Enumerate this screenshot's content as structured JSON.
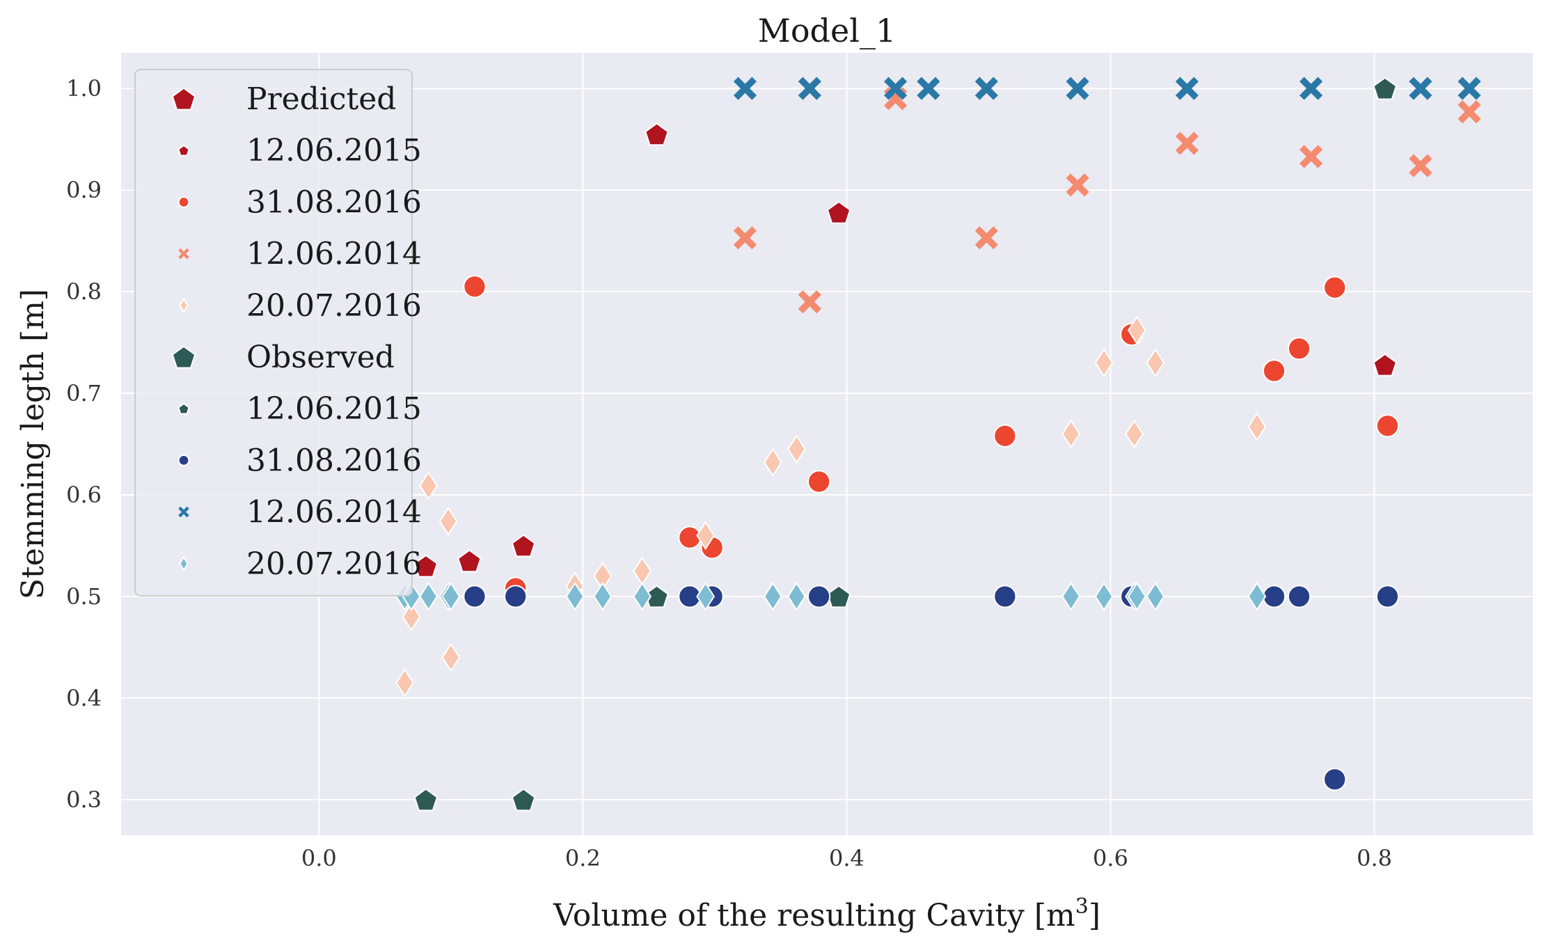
{
  "colors": {
    "plot_bg": "#eaeaf2",
    "pred_2015": "#b0141f",
    "pred_2016_08": "#ec4630",
    "pred_2014": "#f48a6e",
    "pred_2016_07": "#f9c7af",
    "obs_2015": "#2e5a56",
    "obs_2016_08": "#263f86",
    "obs_2014": "#2a78a6",
    "obs_2016_07": "#7dbcd3"
  },
  "chart_data": {
    "type": "scatter",
    "title": "Model_1",
    "xlabel": "Volume of the resulting Cavity [m",
    "xlabel_sup": "3",
    "xlabel_end": "]",
    "ylabel": "Stemming legth [m]",
    "xlim": [
      -0.15,
      0.92
    ],
    "ylim": [
      0.265,
      1.035
    ],
    "x_ticks": [
      "0.0",
      "0.2",
      "0.4",
      "0.6",
      "0.8"
    ],
    "y_ticks": [
      "0.3",
      "0.4",
      "0.5",
      "0.6",
      "0.7",
      "0.8",
      "0.9",
      "1.0"
    ],
    "legend": [
      {
        "label": "Predicted",
        "kind": "header",
        "marker": "pentagon",
        "color_key": "pred_2015"
      },
      {
        "label": "12.06.2015",
        "kind": "series",
        "marker": "pentagon",
        "color_key": "pred_2015"
      },
      {
        "label": "31.08.2016",
        "kind": "series",
        "marker": "circle",
        "color_key": "pred_2016_08"
      },
      {
        "label": "12.06.2014",
        "kind": "series",
        "marker": "x",
        "color_key": "pred_2014"
      },
      {
        "label": "20.07.2016",
        "kind": "series",
        "marker": "diamond",
        "color_key": "pred_2016_07"
      },
      {
        "label": "Observed",
        "kind": "header",
        "marker": "pentagon",
        "color_key": "obs_2015"
      },
      {
        "label": "12.06.2015",
        "kind": "series",
        "marker": "pentagon",
        "color_key": "obs_2015"
      },
      {
        "label": "31.08.2016",
        "kind": "series",
        "marker": "circle",
        "color_key": "obs_2016_08"
      },
      {
        "label": "12.06.2014",
        "kind": "series",
        "marker": "x",
        "color_key": "obs_2014"
      },
      {
        "label": "20.07.2016",
        "kind": "series",
        "marker": "diamond",
        "color_key": "obs_2016_07"
      }
    ],
    "series": [
      {
        "name": "Predicted 12.06.2015",
        "group": "Predicted",
        "marker": "pentagon",
        "color_key": "pred_2015",
        "x": [
          0.081,
          0.114,
          0.155,
          0.256,
          0.394,
          0.808
        ],
        "y": [
          0.53,
          0.535,
          0.55,
          0.955,
          0.878,
          0.728
        ]
      },
      {
        "name": "Predicted 31.08.2016",
        "group": "Predicted",
        "marker": "circle",
        "color_key": "pred_2016_08",
        "x": [
          0.118,
          0.149,
          0.281,
          0.298,
          0.379,
          0.52,
          0.616,
          0.724,
          0.743,
          0.77,
          0.81
        ],
        "y": [
          0.805,
          0.508,
          0.558,
          0.548,
          0.613,
          0.658,
          0.758,
          0.722,
          0.744,
          0.804,
          0.668
        ]
      },
      {
        "name": "Predicted 12.06.2014",
        "group": "Predicted",
        "marker": "x",
        "color_key": "pred_2014",
        "x": [
          0.323,
          0.372,
          0.437,
          0.506,
          0.575,
          0.658,
          0.752,
          0.835,
          0.872
        ],
        "y": [
          0.853,
          0.79,
          0.99,
          0.853,
          0.905,
          0.946,
          0.933,
          0.924,
          0.977
        ]
      },
      {
        "name": "Predicted 20.07.2016",
        "group": "Predicted",
        "marker": "diamond",
        "color_key": "pred_2016_07",
        "x": [
          0.065,
          0.07,
          0.083,
          0.098,
          0.1,
          0.194,
          0.215,
          0.245,
          0.293,
          0.344,
          0.362,
          0.57,
          0.595,
          0.618,
          0.62,
          0.634,
          0.711
        ],
        "y": [
          0.415,
          0.48,
          0.609,
          0.574,
          0.44,
          0.51,
          0.52,
          0.525,
          0.56,
          0.632,
          0.645,
          0.66,
          0.73,
          0.66,
          0.762,
          0.73,
          0.667
        ]
      },
      {
        "name": "Observed 12.06.2015",
        "group": "Observed",
        "marker": "pentagon",
        "color_key": "obs_2015",
        "x": [
          0.081,
          0.155,
          0.256,
          0.394,
          0.808
        ],
        "y": [
          0.3,
          0.3,
          0.5,
          0.5,
          1.0
        ]
      },
      {
        "name": "Observed 31.08.2016",
        "group": "Observed",
        "marker": "circle",
        "color_key": "obs_2016_08",
        "x": [
          0.118,
          0.149,
          0.281,
          0.298,
          0.379,
          0.52,
          0.616,
          0.724,
          0.743,
          0.77,
          0.81
        ],
        "y": [
          0.5,
          0.5,
          0.5,
          0.5,
          0.5,
          0.5,
          0.5,
          0.5,
          0.5,
          0.32,
          0.5
        ]
      },
      {
        "name": "Observed 12.06.2014",
        "group": "Observed",
        "marker": "x",
        "color_key": "obs_2014",
        "x": [
          0.323,
          0.372,
          0.437,
          0.462,
          0.506,
          0.575,
          0.658,
          0.752,
          0.835,
          0.872
        ],
        "y": [
          1.0,
          1.0,
          1.0,
          1.0,
          1.0,
          1.0,
          1.0,
          1.0,
          1.0,
          1.0
        ]
      },
      {
        "name": "Observed 20.07.2016",
        "group": "Observed",
        "marker": "diamond",
        "color_key": "obs_2016_07",
        "x": [
          0.065,
          0.07,
          0.083,
          0.098,
          0.1,
          0.194,
          0.215,
          0.245,
          0.293,
          0.344,
          0.362,
          0.57,
          0.595,
          0.618,
          0.62,
          0.634,
          0.711
        ],
        "y": [
          0.5,
          0.5,
          0.5,
          0.5,
          0.5,
          0.5,
          0.5,
          0.5,
          0.5,
          0.5,
          0.5,
          0.5,
          0.5,
          0.5,
          0.5,
          0.5,
          0.5
        ]
      }
    ]
  }
}
